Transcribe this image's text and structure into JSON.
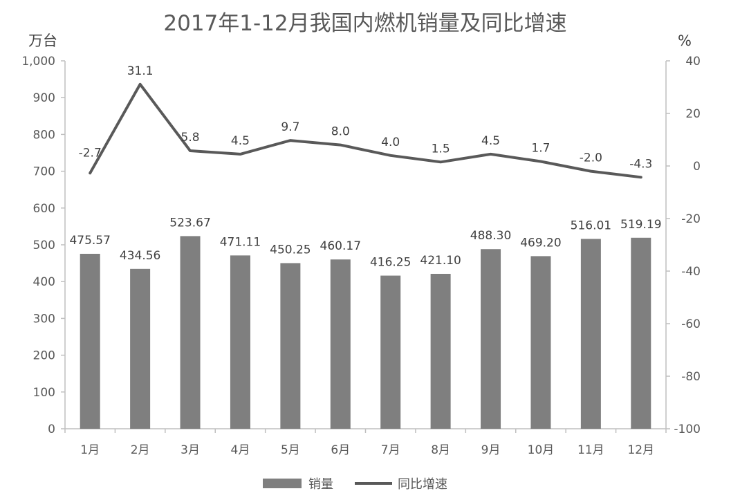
{
  "chart_data": {
    "type": "bar",
    "title": "2017年1-12月我国内燃机销量及同比增速",
    "categories": [
      "1月",
      "2月",
      "3月",
      "4月",
      "5月",
      "6月",
      "7月",
      "8月",
      "9月",
      "10月",
      "11月",
      "12月"
    ],
    "y_left": {
      "unit": "万台",
      "range": [
        0,
        1000
      ],
      "ticks": [
        0,
        100,
        200,
        300,
        400,
        500,
        600,
        700,
        800,
        900,
        1000
      ],
      "tick_labels": [
        "0",
        "100",
        "200",
        "300",
        "400",
        "500",
        "600",
        "700",
        "800",
        "900",
        "1,000"
      ]
    },
    "y_right": {
      "unit": "%",
      "range": [
        -100,
        40
      ],
      "ticks": [
        -100,
        -80,
        -60,
        -40,
        -20,
        0,
        20,
        40
      ],
      "tick_labels": [
        "-100",
        "-80",
        "-60",
        "-40",
        "-20",
        "0",
        "20",
        "40"
      ]
    },
    "series": [
      {
        "name": "销量",
        "type": "bar",
        "axis": "left",
        "values": [
          475.57,
          434.56,
          523.67,
          471.11,
          450.25,
          460.17,
          416.25,
          421.1,
          488.3,
          469.2,
          516.01,
          519.19
        ],
        "labels": [
          "475.57",
          "434.56",
          "523.67",
          "471.11",
          "450.25",
          "460.17",
          "416.25",
          "421.10",
          "488.30",
          "469.20",
          "516.01",
          "519.19"
        ],
        "color": "#7f7f7f"
      },
      {
        "name": "同比增速",
        "type": "line",
        "axis": "right",
        "values": [
          -2.7,
          31.1,
          5.8,
          4.5,
          9.7,
          8.0,
          4.0,
          1.5,
          4.5,
          1.7,
          -2.0,
          -4.3
        ],
        "labels": [
          "-2.7",
          "31.1",
          "5.8",
          "4.5",
          "9.7",
          "8.0",
          "4.0",
          "1.5",
          "4.5",
          "1.7",
          "-2.0",
          "-4.3"
        ],
        "color": "#595959"
      }
    ],
    "grid": false,
    "legend_position": "bottom",
    "colors": {
      "bar": "#7f7f7f",
      "line": "#595959",
      "axis": "#bfbfbf",
      "text": "#595959"
    }
  }
}
